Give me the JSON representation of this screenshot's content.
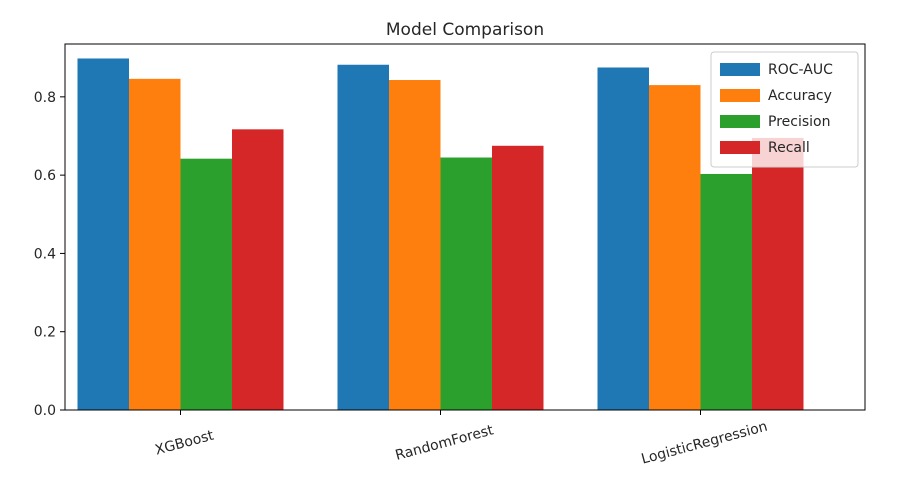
{
  "chart_data": {
    "type": "bar",
    "title": "Model Comparison",
    "xlabel": "",
    "ylabel": "",
    "categories": [
      "XGBoost",
      "RandomForest",
      "LogisticRegression"
    ],
    "series": [
      {
        "name": "ROC-AUC",
        "color": "#1f77b4",
        "values": [
          0.898,
          0.882,
          0.875
        ]
      },
      {
        "name": "Accuracy",
        "color": "#ff7f0e",
        "values": [
          0.846,
          0.843,
          0.83
        ]
      },
      {
        "name": "Precision",
        "color": "#2ca02c",
        "values": [
          0.642,
          0.645,
          0.603
        ]
      },
      {
        "name": "Recall",
        "color": "#d62728",
        "values": [
          0.717,
          0.675,
          0.695
        ]
      }
    ],
    "ylim": [
      0,
      0.935
    ],
    "yticks": [
      "0.0",
      "0.2",
      "0.4",
      "0.6",
      "0.8"
    ],
    "ytick_values": [
      0.0,
      0.2,
      0.4,
      0.6,
      0.8
    ],
    "xtick_rotation": "rotated ~15 degrees",
    "legend_position": "top-right",
    "grid": false
  }
}
